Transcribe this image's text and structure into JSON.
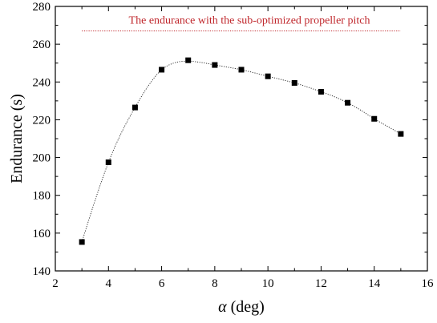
{
  "chart_data": {
    "type": "scatter",
    "title": "",
    "xlabel": {
      "symbol": "α",
      "unit": "(deg)"
    },
    "ylabel": "Endurance (s)",
    "xlim": [
      2,
      16
    ],
    "ylim": [
      140,
      280
    ],
    "x_ticks": [
      2,
      4,
      6,
      8,
      10,
      12,
      14,
      16
    ],
    "y_ticks": [
      140,
      160,
      180,
      200,
      220,
      240,
      260,
      280
    ],
    "grid": false,
    "legend": "none",
    "series": [
      {
        "marker": "square",
        "color": "#000000",
        "fit_line": "dotted",
        "x": [
          3,
          4,
          5,
          6,
          7,
          8,
          9,
          10,
          11,
          12,
          13,
          14,
          15
        ],
        "y": [
          155.3,
          197.5,
          226.5,
          246.5,
          251.5,
          249,
          246.5,
          243,
          239.5,
          234.8,
          229,
          220.5,
          212.5
        ]
      }
    ],
    "reference_line": {
      "label": "The endurance with the sub-optimized propeller pitch",
      "y": 267,
      "x_start": 3,
      "x_end": 15,
      "color": "#c0282d",
      "style": "dotted"
    },
    "curve_points": {
      "x": [
        3,
        3.5,
        4,
        4.5,
        5,
        5.5,
        6,
        6.5,
        7,
        7.5,
        8,
        8.5,
        9,
        9.5,
        10,
        10.5,
        11,
        11.5,
        12,
        12.5,
        13,
        13.5,
        14,
        14.5,
        15
      ],
      "y": [
        155.3,
        177.5,
        197.5,
        213.5,
        226.5,
        238,
        246.5,
        250.2,
        251,
        250.3,
        249,
        247.8,
        246.5,
        244.8,
        243,
        241.3,
        239.5,
        237.3,
        234.8,
        232.2,
        229,
        225,
        220.5,
        216.5,
        212.5
      ]
    }
  }
}
